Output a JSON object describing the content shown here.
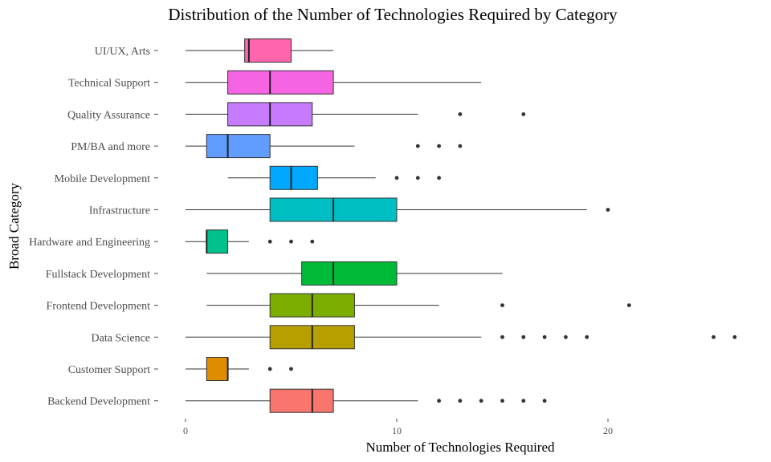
{
  "chart_data": {
    "type": "boxplot",
    "title": "Distribution of the Number of Technologies Required by Category",
    "xlabel": "Number of Technologies Required",
    "ylabel": "Broad Category",
    "xlim": [
      -0.5,
      26.5
    ],
    "xticks": [
      0,
      10,
      20
    ],
    "grid": false,
    "legend": "none",
    "categories": [
      {
        "name": "UI/UX, Arts",
        "color": "#FF65AC",
        "min": 0,
        "q1": 2.8,
        "median": 3,
        "q3": 5,
        "max": 7,
        "outliers": []
      },
      {
        "name": "Technical Support",
        "color": "#F564E3",
        "min": 0,
        "q1": 2,
        "median": 4,
        "q3": 7,
        "max": 14,
        "outliers": []
      },
      {
        "name": "Quality Assurance",
        "color": "#C77CFF",
        "min": 0,
        "q1": 2,
        "median": 4,
        "q3": 6,
        "max": 11,
        "outliers": [
          13,
          16
        ]
      },
      {
        "name": "PM/BA and more",
        "color": "#619CFF",
        "min": 0,
        "q1": 1,
        "median": 2,
        "q3": 4,
        "max": 8,
        "outliers": [
          11,
          12,
          13
        ]
      },
      {
        "name": "Mobile Development",
        "color": "#00A9FF",
        "min": 2,
        "q1": 4,
        "median": 5,
        "q3": 6.25,
        "max": 9,
        "outliers": [
          10,
          11,
          12
        ]
      },
      {
        "name": "Infrastructure",
        "color": "#00BFC4",
        "min": 0,
        "q1": 4,
        "median": 7,
        "q3": 10,
        "max": 19,
        "outliers": [
          20
        ]
      },
      {
        "name": "Hardware and Engineering",
        "color": "#00C08B",
        "min": 0,
        "q1": 1,
        "median": 1,
        "q3": 2,
        "max": 3,
        "outliers": [
          4,
          5,
          6
        ]
      },
      {
        "name": "Fullstack Development",
        "color": "#00BA38",
        "min": 1,
        "q1": 5.5,
        "median": 7,
        "q3": 10,
        "max": 15,
        "outliers": []
      },
      {
        "name": "Frontend Development",
        "color": "#7CAE00",
        "min": 1,
        "q1": 4,
        "median": 6,
        "q3": 8,
        "max": 12,
        "outliers": [
          15,
          21
        ]
      },
      {
        "name": "Data Science",
        "color": "#B79F00",
        "min": 0,
        "q1": 4,
        "median": 6,
        "q3": 8,
        "max": 14,
        "outliers": [
          15,
          16,
          17,
          18,
          19,
          25,
          26
        ]
      },
      {
        "name": "Customer Support",
        "color": "#DE8C00",
        "min": 0,
        "q1": 1,
        "median": 2,
        "q3": 2,
        "max": 3,
        "outliers": [
          4,
          5
        ]
      },
      {
        "name": "Backend Development",
        "color": "#F8766D",
        "min": 0,
        "q1": 4,
        "median": 6,
        "q3": 7,
        "max": 11,
        "outliers": [
          12,
          13,
          14,
          15,
          16,
          17
        ]
      }
    ]
  }
}
